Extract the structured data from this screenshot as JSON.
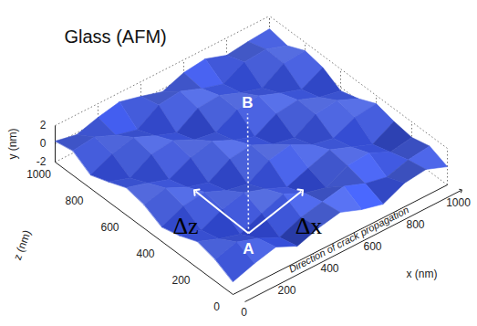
{
  "chart_data": {
    "type": "surface",
    "title": "Glass (AFM)",
    "x_label": "x (nm)",
    "y_label": "y (nm)",
    "z_label": "z (nm)",
    "x": [
      0,
      100,
      200,
      300,
      400,
      500,
      600,
      700,
      800,
      900,
      1000
    ],
    "z": [
      0,
      100,
      200,
      300,
      400,
      500,
      600,
      700,
      800,
      900,
      1000
    ],
    "values": [
      [
        -0.6,
        0.2,
        0.8,
        -0.3,
        0.5,
        1.0,
        0.1,
        -0.5,
        0.6,
        0.9,
        0.0
      ],
      [
        0.4,
        1.1,
        0.3,
        -0.8,
        0.2,
        0.7,
        1.2,
        0.3,
        -0.2,
        0.5,
        0.8
      ],
      [
        0.9,
        0.0,
        -0.7,
        0.4,
        1.3,
        0.2,
        -0.4,
        0.8,
        1.0,
        -0.1,
        0.3
      ],
      [
        0.1,
        -0.5,
        0.6,
        1.2,
        0.4,
        -0.6,
        0.3,
        1.1,
        0.2,
        -0.7,
        0.6
      ],
      [
        -0.4,
        0.7,
        1.0,
        0.0,
        -0.5,
        0.9,
        1.4,
        0.2,
        -0.3,
        0.8,
        1.1
      ],
      [
        0.6,
        1.2,
        0.1,
        -0.6,
        0.8,
        1.1,
        0.0,
        -0.5,
        0.9,
        1.2,
        0.2
      ],
      [
        1.0,
        0.3,
        -0.5,
        0.7,
        1.3,
        0.2,
        -0.6,
        0.7,
        1.0,
        0.1,
        -0.4
      ],
      [
        0.2,
        -0.6,
        0.8,
        1.1,
        0.0,
        -0.4,
        0.9,
        1.2,
        0.3,
        -0.5,
        0.7
      ],
      [
        -0.5,
        0.6,
        1.2,
        0.2,
        -0.7,
        0.8,
        1.0,
        0.1,
        -0.6,
        0.9,
        1.1
      ],
      [
        0.7,
        1.0,
        0.0,
        -0.6,
        0.9,
        1.2,
        0.3,
        -0.4,
        0.8,
        1.0,
        0.2
      ],
      [
        0.3,
        -0.2,
        0.5,
        1.0,
        0.4,
        -0.3,
        0.6,
        0.9,
        0.1,
        0.4,
        0.6
      ]
    ],
    "xlim": [
      0,
      1000
    ],
    "xticks": [
      0,
      200,
      400,
      600,
      800,
      1000
    ],
    "zlim": [
      0,
      1000
    ],
    "zticks": [
      0,
      200,
      400,
      600,
      800,
      1000
    ],
    "ylim": [
      -2,
      2
    ],
    "yticks": [
      -2,
      0,
      2
    ],
    "grid": true,
    "annotations": [
      "A",
      "B",
      "Δz",
      "Δx",
      "Direction of crack propagation"
    ]
  }
}
